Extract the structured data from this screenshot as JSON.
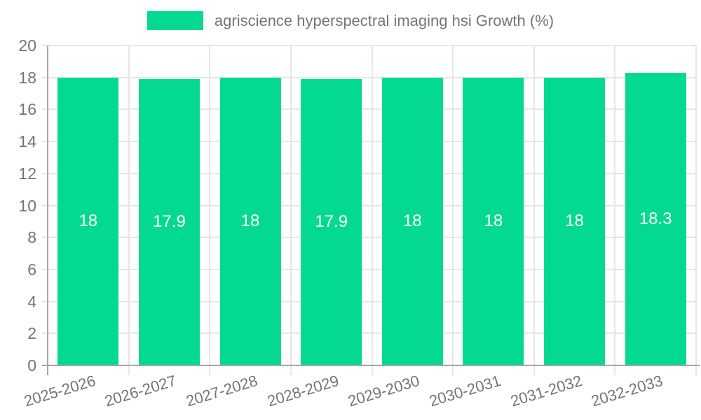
{
  "legend": {
    "label": "agriscience hyperspectral imaging hsi Growth (%)"
  },
  "colors": {
    "bar": "#04da8f",
    "grid": "#e6e6e6",
    "axis": "#a6a6a6",
    "tick_text": "#737373",
    "legend_text": "#757575",
    "value_text": "#ffffff",
    "background": "#ffffff"
  },
  "chart_data": {
    "type": "bar",
    "title": "agriscience hyperspectral imaging hsi Growth (%)",
    "categories": [
      "2025-2026",
      "2026-2027",
      "2027-2028",
      "2028-2029",
      "2029-2030",
      "2030-2031",
      "2031-2032",
      "2032-2033"
    ],
    "values": [
      18,
      17.9,
      18,
      17.9,
      18,
      18,
      18,
      18.3
    ],
    "value_labels": [
      "18",
      "17.9",
      "18",
      "17.9",
      "18",
      "18",
      "18",
      "18.3"
    ],
    "xlabel": "",
    "ylabel": "",
    "ylim": [
      0,
      20
    ],
    "ytick_step": 2,
    "grid": true,
    "legend_position": "top",
    "bar_label_position": "center"
  }
}
